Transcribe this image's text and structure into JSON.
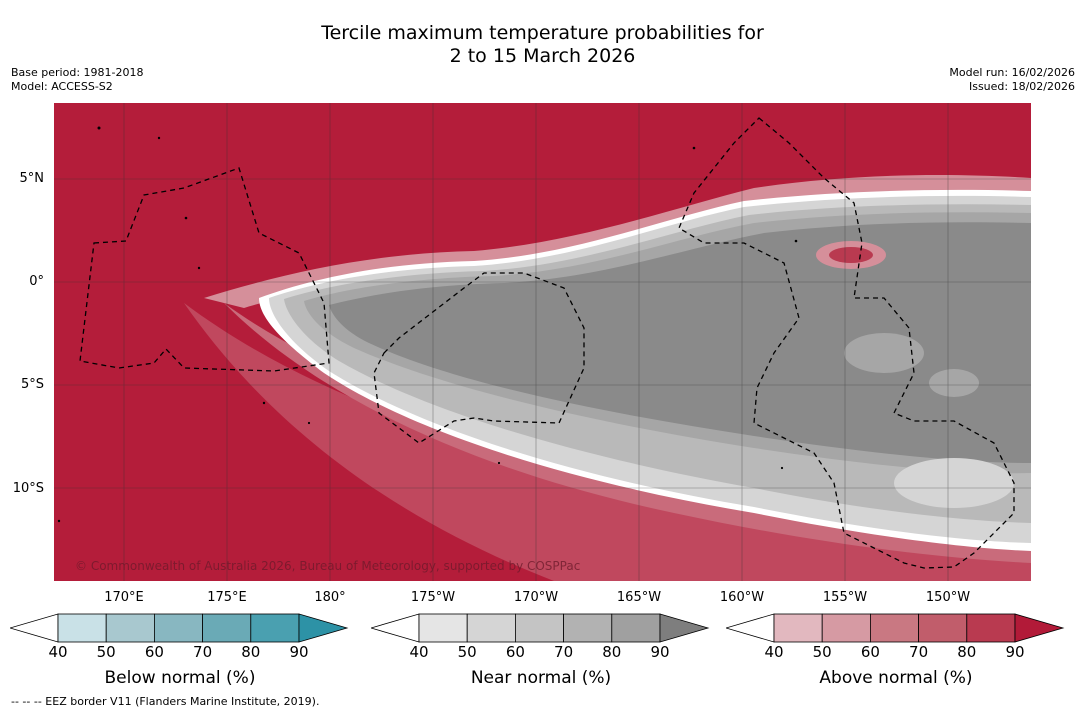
{
  "title": {
    "line1": "Tercile maximum temperature probabilities for",
    "line2": "2 to 15 March 2026"
  },
  "meta_left": {
    "base_period": "Base period: 1981-2018",
    "model": "Model: ACCESS-S2"
  },
  "meta_right": {
    "model_run": "Model run: 16/02/2026",
    "issued": "Issued: 18/02/2026"
  },
  "map": {
    "lat_labels": [
      "5°N",
      "0°",
      "5°S",
      "10°S"
    ],
    "lon_labels": [
      "170°E",
      "175°E",
      "180°",
      "175°W",
      "170°W",
      "165°W",
      "160°W",
      "155°W",
      "150°W"
    ],
    "copyright": "© Commonwealth of Australia 2026, Bureau of Meteorology, supported by COSPPac",
    "colors": {
      "above_max": "#b41d3a",
      "near_max": "#8a8a8a"
    }
  },
  "colorbars": [
    {
      "name": "below",
      "title": "Below normal (%)",
      "ticks": [
        "40",
        "50",
        "60",
        "70",
        "80",
        "90"
      ],
      "colors": [
        "#ffffff",
        "#c9e1e7",
        "#a8c8cf",
        "#88b7c1",
        "#6aaab6",
        "#4aa0b0",
        "#2d92a6"
      ]
    },
    {
      "name": "near",
      "title": "Near normal (%)",
      "ticks": [
        "40",
        "50",
        "60",
        "70",
        "80",
        "90"
      ],
      "colors": [
        "#ffffff",
        "#e5e5e5",
        "#d5d5d5",
        "#c4c4c4",
        "#b2b2b2",
        "#a0a0a0",
        "#7e7e7e"
      ]
    },
    {
      "name": "above",
      "title": "Above normal (%)",
      "ticks": [
        "40",
        "50",
        "60",
        "70",
        "80",
        "90"
      ],
      "colors": [
        "#ffffff",
        "#e2b8bf",
        "#d69aa3",
        "#c97882",
        "#c15d6b",
        "#b93a50",
        "#b21a38"
      ]
    }
  ],
  "footnote": "-- -- -- EEZ border V11 (Flanders Marine Institute, 2019)."
}
